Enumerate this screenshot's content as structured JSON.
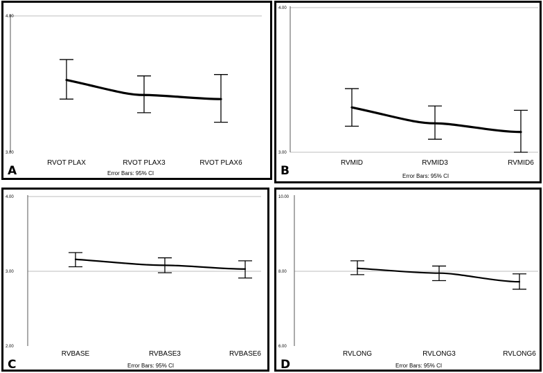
{
  "footnote": "Error Bars: 95% CI",
  "colors": {
    "line": "#000000",
    "grid": "#bdbdbd",
    "frame": "#000000"
  },
  "chart_data": [
    {
      "panel": "A",
      "type": "line",
      "ylim": [
        3.0,
        4.0
      ],
      "yticks": [
        "3.00",
        "4.00"
      ],
      "ytick_values": [
        3.0,
        4.0
      ],
      "ygrid_values": [
        4.0
      ],
      "categories": [
        "RVOT PLAX",
        "RVOT PLAX3",
        "RVOT PLAX6"
      ],
      "values": [
        3.53,
        3.42,
        3.39
      ],
      "ci_low": [
        3.39,
        3.29,
        3.22
      ],
      "ci_high": [
        3.68,
        3.56,
        3.57
      ],
      "error_bars": "95% CI"
    },
    {
      "panel": "B",
      "type": "line",
      "ylim": [
        3.0,
        4.0
      ],
      "yticks": [
        "3.00",
        "4.00"
      ],
      "ytick_values": [
        3.0,
        4.0
      ],
      "ygrid_values": [
        4.0,
        3.0
      ],
      "categories": [
        "RVMID",
        "RVMID3",
        "RVMID6"
      ],
      "values": [
        3.31,
        3.2,
        3.14
      ],
      "ci_low": [
        3.18,
        3.09,
        3.0
      ],
      "ci_high": [
        3.44,
        3.32,
        3.29
      ],
      "error_bars": "95% CI"
    },
    {
      "panel": "C",
      "type": "line",
      "ylim": [
        2.0,
        4.0
      ],
      "yticks": [
        "2.00",
        "3.00",
        "4.00"
      ],
      "ytick_values": [
        2.0,
        3.0,
        4.0
      ],
      "ygrid_values": [
        4.0,
        3.0
      ],
      "categories": [
        "RVBASE",
        "RVBASE3",
        "RVBASE6"
      ],
      "values": [
        3.16,
        3.08,
        3.03
      ],
      "ci_low": [
        3.06,
        2.98,
        2.91
      ],
      "ci_high": [
        3.25,
        3.18,
        3.14
      ],
      "error_bars": "95% CI"
    },
    {
      "panel": "D",
      "type": "line",
      "ylim": [
        6.0,
        10.0
      ],
      "yticks": [
        "6.00",
        "8.00",
        "10.00"
      ],
      "ytick_values": [
        6.0,
        8.0,
        10.0
      ],
      "ygrid_values": [
        8.0
      ],
      "categories": [
        "RVLONG",
        "RVLONG3",
        "RVLONG6"
      ],
      "values": [
        8.08,
        7.95,
        7.72
      ],
      "ci_low": [
        7.91,
        7.75,
        7.52
      ],
      "ci_high": [
        8.28,
        8.14,
        7.93
      ],
      "error_bars": "95% CI"
    }
  ]
}
